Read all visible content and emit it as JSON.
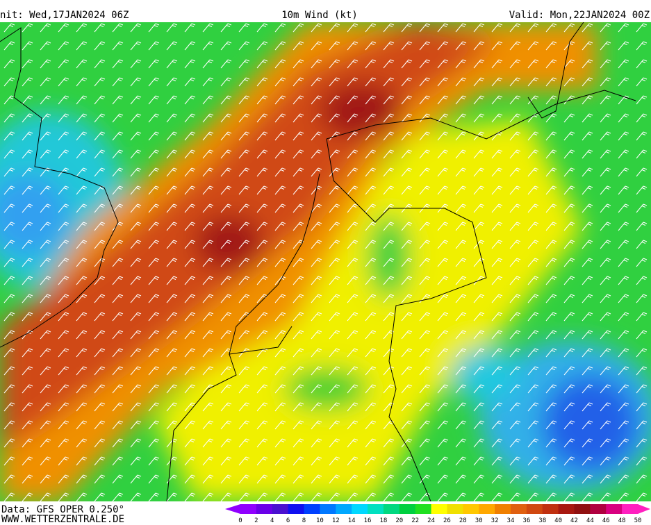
{
  "header": {
    "init": "nit: Wed,17JAN2024 06Z",
    "title": "10m Wind (kt)",
    "valid": "Valid: Mon,22JAN2024 00Z"
  },
  "footer": {
    "source": "Data: GFS OPER 0.250°",
    "site": "WWW.WETTERZENTRALE.DE"
  },
  "legend": {
    "ticks": [
      0,
      2,
      4,
      6,
      8,
      10,
      12,
      14,
      16,
      18,
      20,
      22,
      24,
      26,
      28,
      30,
      32,
      34,
      36,
      38,
      40,
      42,
      44,
      46,
      48,
      50
    ],
    "colors": [
      "#9000ff",
      "#6a00e8",
      "#4a10d0",
      "#1010f0",
      "#0040ff",
      "#0078ff",
      "#00a8ff",
      "#00d8ff",
      "#00e0c0",
      "#00d880",
      "#00d040",
      "#20e020",
      "#ffff00",
      "#f0e000",
      "#ffc800",
      "#ffa800",
      "#f08000",
      "#e06010",
      "#d04810",
      "#c03010",
      "#a81810",
      "#901010",
      "#b00040",
      "#d80080",
      "#ff20c0"
    ]
  }
}
